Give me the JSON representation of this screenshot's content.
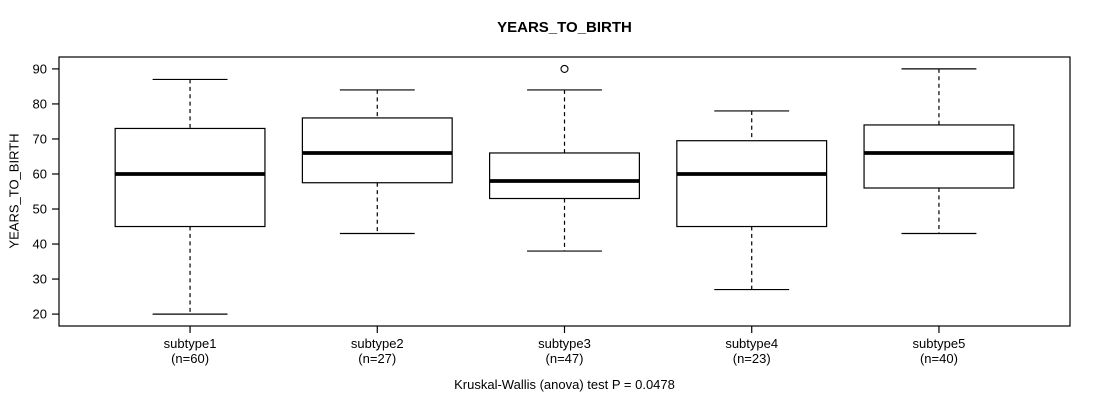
{
  "figure": {
    "title": "YEARS_TO_BIRTH",
    "y_axis_label": "YEARS_TO_BIRTH",
    "footer": "Kruskal-Wallis (anova) test P = 0.0478"
  },
  "chart_data": {
    "type": "boxplot",
    "title": "YEARS_TO_BIRTH",
    "ylabel": "YEARS_TO_BIRTH",
    "xlabel": "",
    "annotation": "Kruskal-Wallis (anova) test P = 0.0478",
    "categories": [
      "subtype1",
      "subtype2",
      "subtype3",
      "subtype4",
      "subtype5"
    ],
    "count_labels": [
      "(n=60)",
      "(n=27)",
      "(n=47)",
      "(n=23)",
      "(n=40)"
    ],
    "series": [
      {
        "name": "subtype1",
        "n": 60,
        "whisker_low": 20,
        "q1": 45,
        "median": 60,
        "q3": 73,
        "whisker_high": 87,
        "outliers": []
      },
      {
        "name": "subtype2",
        "n": 27,
        "whisker_low": 43,
        "q1": 57.5,
        "median": 66,
        "q3": 76,
        "whisker_high": 84,
        "outliers": []
      },
      {
        "name": "subtype3",
        "n": 47,
        "whisker_low": 38,
        "q1": 53,
        "median": 58,
        "q3": 66,
        "whisker_high": 84,
        "outliers": [
          90
        ]
      },
      {
        "name": "subtype4",
        "n": 23,
        "whisker_low": 27,
        "q1": 45,
        "median": 60,
        "q3": 69.5,
        "whisker_high": 78,
        "outliers": []
      },
      {
        "name": "subtype5",
        "n": 40,
        "whisker_low": 43,
        "q1": 56,
        "median": 66,
        "q3": 74,
        "whisker_high": 90,
        "outliers": []
      }
    ],
    "yticks": [
      20,
      30,
      40,
      50,
      60,
      70,
      80,
      90
    ],
    "ylim": [
      16.6,
      93.4
    ],
    "grid": false,
    "legend": "none",
    "colors": {
      "stroke": "#000000",
      "box_fill": "#ffffff",
      "background": "#ffffff"
    }
  }
}
